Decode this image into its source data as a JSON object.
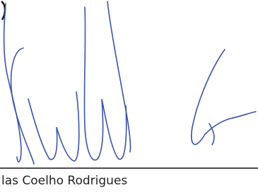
{
  "signature": {
    "name": "las Coelho Rodrigues"
  }
}
